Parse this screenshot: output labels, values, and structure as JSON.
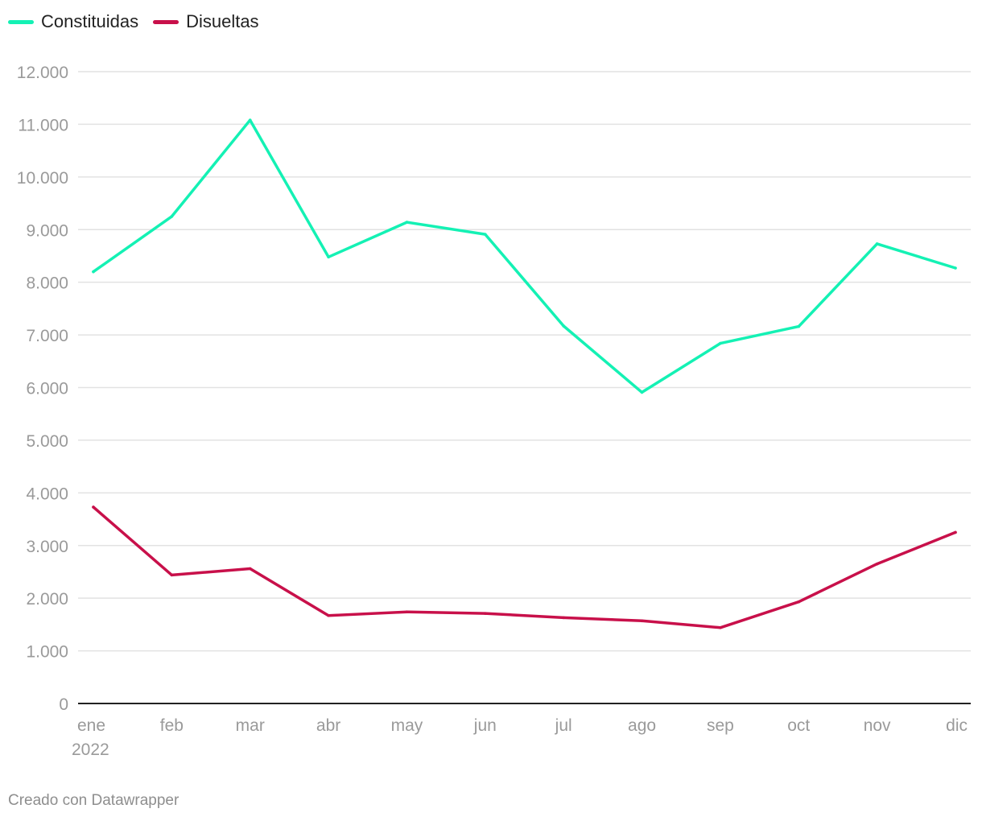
{
  "legend": {
    "items": [
      {
        "label": "Constituidas",
        "color": "#14f1b4"
      },
      {
        "label": "Disueltas",
        "color": "#c8104a"
      }
    ]
  },
  "footer": {
    "credit": "Creado con Datawrapper"
  },
  "chart_data": {
    "type": "line",
    "x": [
      "ene",
      "feb",
      "mar",
      "abr",
      "may",
      "jun",
      "jul",
      "ago",
      "sep",
      "oct",
      "nov",
      "dic"
    ],
    "x_year_label": "2022",
    "series": [
      {
        "name": "Constituidas",
        "color": "#14f1b4",
        "values": [
          8200,
          9250,
          11080,
          8480,
          9140,
          8910,
          7170,
          5910,
          6840,
          7160,
          8730,
          8270
        ]
      },
      {
        "name": "Disueltas",
        "color": "#c8104a",
        "values": [
          3730,
          2440,
          2560,
          1670,
          1740,
          1710,
          1630,
          1570,
          1440,
          1930,
          2650,
          3250
        ]
      }
    ],
    "yticks": [
      0,
      1000,
      2000,
      3000,
      4000,
      5000,
      6000,
      7000,
      8000,
      9000,
      10000,
      11000,
      12000
    ],
    "ytick_labels": [
      "0",
      "1.000",
      "2.000",
      "3.000",
      "4.000",
      "5.000",
      "6.000",
      "7.000",
      "8.000",
      "9.000",
      "10.000",
      "11.000",
      "12.000"
    ],
    "ylim": [
      0,
      12000
    ],
    "grid": true,
    "legend_position": "top-left"
  }
}
